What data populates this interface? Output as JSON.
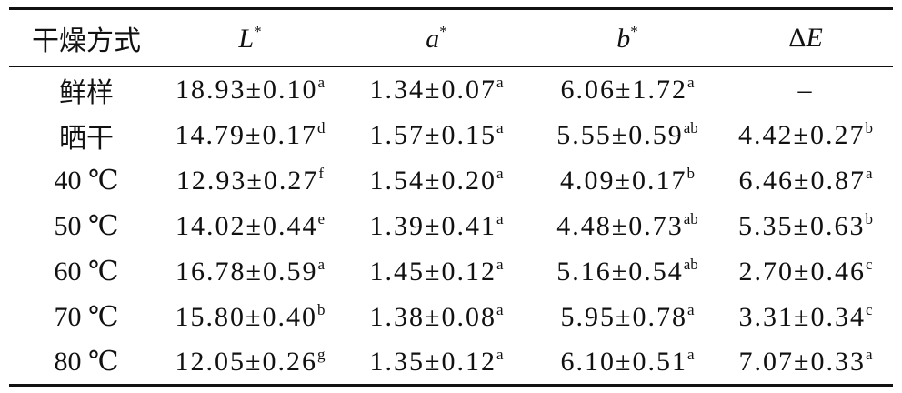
{
  "table": {
    "header": [
      {
        "text": "干燥方式"
      },
      {
        "text": "L",
        "sup": "*"
      },
      {
        "text": "a",
        "sup": "*"
      },
      {
        "text": "b",
        "sup": "*"
      },
      {
        "symbol": "Δ",
        "text": "E"
      }
    ],
    "rows": [
      {
        "label": "鲜样",
        "cells": [
          {
            "value": "18.93±0.10",
            "sup": "a"
          },
          {
            "value": "1.34±0.07",
            "sup": "a"
          },
          {
            "value": "6.06±1.72",
            "sup": "a"
          },
          {
            "value": "–"
          }
        ]
      },
      {
        "label": "晒干",
        "cells": [
          {
            "value": "14.79±0.17",
            "sup": "d"
          },
          {
            "value": "1.57±0.15",
            "sup": "a"
          },
          {
            "value": "5.55±0.59",
            "sup": "ab"
          },
          {
            "value": "4.42±0.27",
            "sup": "b"
          }
        ]
      },
      {
        "label": "40 ℃",
        "cells": [
          {
            "value": "12.93±0.27",
            "sup": "f"
          },
          {
            "value": "1.54±0.20",
            "sup": "a"
          },
          {
            "value": "4.09±0.17",
            "sup": "b"
          },
          {
            "value": "6.46±0.87",
            "sup": "a"
          }
        ]
      },
      {
        "label": "50 ℃",
        "cells": [
          {
            "value": "14.02±0.44",
            "sup": "e"
          },
          {
            "value": "1.39±0.41",
            "sup": "a"
          },
          {
            "value": "4.48±0.73",
            "sup": "ab"
          },
          {
            "value": "5.35±0.63",
            "sup": "b"
          }
        ]
      },
      {
        "label": "60 ℃",
        "cells": [
          {
            "value": "16.78±0.59",
            "sup": "a"
          },
          {
            "value": "1.45±0.12",
            "sup": "a"
          },
          {
            "value": "5.16±0.54",
            "sup": "ab"
          },
          {
            "value": "2.70±0.46",
            "sup": "c"
          }
        ]
      },
      {
        "label": "70 ℃",
        "cells": [
          {
            "value": "15.80±0.40",
            "sup": "b"
          },
          {
            "value": "1.38±0.08",
            "sup": "a"
          },
          {
            "value": "5.95±0.78",
            "sup": "a"
          },
          {
            "value": "3.31±0.34",
            "sup": "c"
          }
        ]
      },
      {
        "label": "80 ℃",
        "cells": [
          {
            "value": "12.05±0.26",
            "sup": "g"
          },
          {
            "value": "1.35±0.12",
            "sup": "a"
          },
          {
            "value": "6.10±0.51",
            "sup": "a"
          },
          {
            "value": "7.07±0.33",
            "sup": "a"
          }
        ]
      }
    ]
  }
}
